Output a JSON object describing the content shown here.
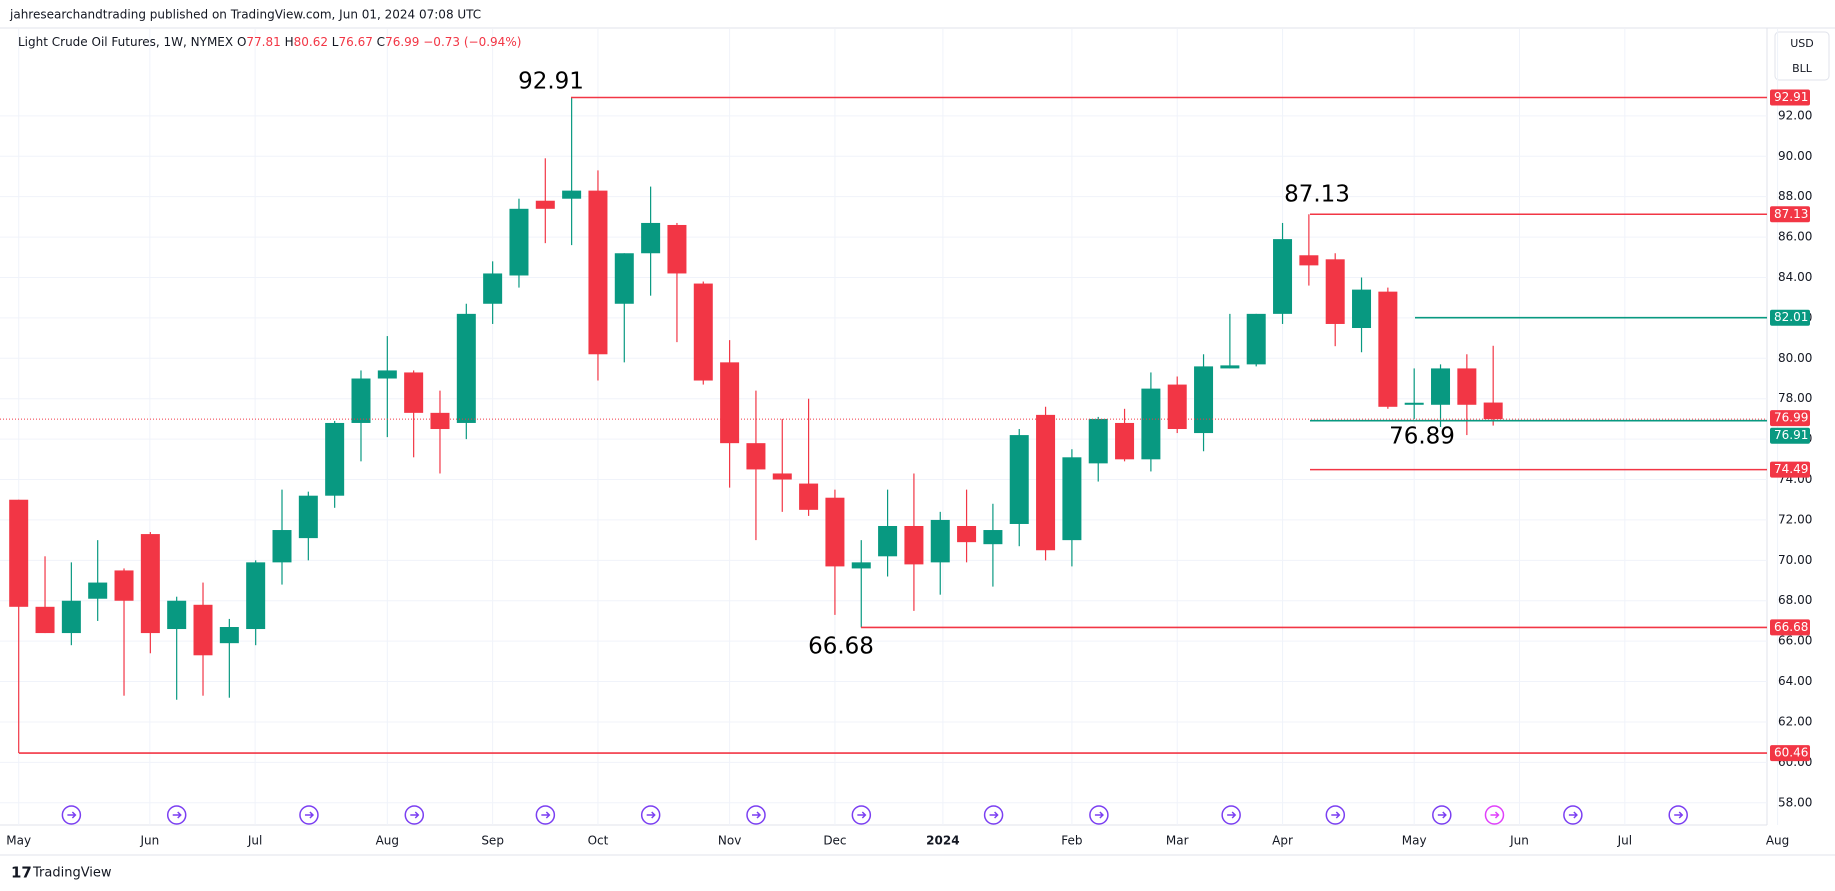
{
  "header": "jahresearchandtrading published on TradingView.com, Jun 01, 2024 07:08 UTC",
  "footer": "TradingView",
  "currency": "USD",
  "unit": "BLL",
  "chart_data": {
    "type": "candlestick",
    "legend": {
      "title": "Light Crude Oil Futures, 1W, NYMEX",
      "open_label": "O",
      "open": 77.81,
      "high_label": "H",
      "high": 80.62,
      "low_label": "L",
      "low": 76.67,
      "close_label": "C",
      "close": 76.99,
      "change": {
        "value": -0.73,
        "label": "−0.73"
      },
      "change_pct": {
        "value": -0.94,
        "label": "(−0.94%)"
      }
    },
    "up_color": "#089981",
    "down_color": "#f23645",
    "candles": [
      {
        "open": 73.0,
        "high": 73.0,
        "low": 60.46,
        "close": 67.7
      },
      {
        "open": 67.7,
        "high": 70.2,
        "low": 66.4,
        "close": 66.4
      },
      {
        "open": 66.4,
        "high": 69.9,
        "low": 65.8,
        "close": 68.0
      },
      {
        "open": 68.1,
        "high": 71.0,
        "low": 67.0,
        "close": 68.9
      },
      {
        "open": 69.5,
        "high": 69.6,
        "low": 63.3,
        "close": 68.0
      },
      {
        "open": 71.3,
        "high": 71.4,
        "low": 65.4,
        "close": 66.4
      },
      {
        "open": 66.6,
        "high": 68.2,
        "low": 63.1,
        "close": 68.0
      },
      {
        "open": 67.8,
        "high": 68.9,
        "low": 63.3,
        "close": 65.3
      },
      {
        "open": 65.9,
        "high": 67.1,
        "low": 63.2,
        "close": 66.7
      },
      {
        "open": 66.6,
        "high": 70.0,
        "low": 65.8,
        "close": 69.9
      },
      {
        "open": 69.9,
        "high": 73.5,
        "low": 68.8,
        "close": 71.5
      },
      {
        "open": 71.1,
        "high": 73.4,
        "low": 70.0,
        "close": 73.2
      },
      {
        "open": 73.2,
        "high": 76.9,
        "low": 72.6,
        "close": 76.8
      },
      {
        "open": 76.8,
        "high": 79.4,
        "low": 74.9,
        "close": 79.0
      },
      {
        "open": 79.0,
        "high": 81.1,
        "low": 76.1,
        "close": 79.4
      },
      {
        "open": 79.3,
        "high": 79.4,
        "low": 75.1,
        "close": 77.3
      },
      {
        "open": 77.3,
        "high": 78.4,
        "low": 74.3,
        "close": 76.5
      },
      {
        "open": 76.8,
        "high": 82.7,
        "low": 76.0,
        "close": 82.2
      },
      {
        "open": 82.7,
        "high": 84.8,
        "low": 81.7,
        "close": 84.2
      },
      {
        "open": 84.1,
        "high": 87.9,
        "low": 83.5,
        "close": 87.4
      },
      {
        "open": 87.8,
        "high": 89.9,
        "low": 85.7,
        "close": 87.4
      },
      {
        "open": 87.9,
        "high": 92.91,
        "low": 85.6,
        "close": 88.3
      },
      {
        "open": 88.3,
        "high": 89.3,
        "low": 78.9,
        "close": 80.2
      },
      {
        "open": 82.7,
        "high": 85.2,
        "low": 79.8,
        "close": 85.2
      },
      {
        "open": 85.2,
        "high": 88.5,
        "low": 83.1,
        "close": 86.7
      },
      {
        "open": 86.6,
        "high": 86.7,
        "low": 80.8,
        "close": 84.2
      },
      {
        "open": 83.7,
        "high": 83.8,
        "low": 78.7,
        "close": 78.9
      },
      {
        "open": 79.8,
        "high": 80.9,
        "low": 73.6,
        "close": 75.8
      },
      {
        "open": 75.8,
        "high": 78.4,
        "low": 71.0,
        "close": 74.5
      },
      {
        "open": 74.3,
        "high": 77.0,
        "low": 72.4,
        "close": 74.0
      },
      {
        "open": 73.8,
        "high": 78.0,
        "low": 72.2,
        "close": 72.5
      },
      {
        "open": 73.1,
        "high": 73.5,
        "low": 67.3,
        "close": 69.7
      },
      {
        "open": 69.6,
        "high": 71.0,
        "low": 66.68,
        "close": 69.9
      },
      {
        "open": 70.2,
        "high": 73.5,
        "low": 69.2,
        "close": 71.7
      },
      {
        "open": 71.7,
        "high": 74.3,
        "low": 67.5,
        "close": 69.8
      },
      {
        "open": 69.9,
        "high": 72.4,
        "low": 68.3,
        "close": 72.0
      },
      {
        "open": 71.7,
        "high": 73.5,
        "low": 69.9,
        "close": 70.9
      },
      {
        "open": 70.8,
        "high": 72.8,
        "low": 68.7,
        "close": 71.5
      },
      {
        "open": 71.8,
        "high": 76.5,
        "low": 70.7,
        "close": 76.2
      },
      {
        "open": 77.2,
        "high": 77.6,
        "low": 70.0,
        "close": 70.5
      },
      {
        "open": 71.0,
        "high": 75.5,
        "low": 69.7,
        "close": 75.1
      },
      {
        "open": 74.8,
        "high": 77.1,
        "low": 73.9,
        "close": 77.0
      },
      {
        "open": 76.8,
        "high": 77.5,
        "low": 74.9,
        "close": 75.0
      },
      {
        "open": 75.0,
        "high": 79.3,
        "low": 74.4,
        "close": 78.5
      },
      {
        "open": 78.7,
        "high": 79.1,
        "low": 76.3,
        "close": 76.5
      },
      {
        "open": 76.3,
        "high": 80.2,
        "low": 75.4,
        "close": 79.6
      },
      {
        "open": 79.5,
        "high": 82.2,
        "low": 79.5,
        "close": 79.65
      },
      {
        "open": 79.7,
        "high": 82.2,
        "low": 79.6,
        "close": 82.2
      },
      {
        "open": 82.2,
        "high": 86.7,
        "low": 81.7,
        "close": 85.9
      },
      {
        "open": 85.1,
        "high": 87.13,
        "low": 83.6,
        "close": 84.6
      },
      {
        "open": 84.9,
        "high": 85.2,
        "low": 80.6,
        "close": 81.7
      },
      {
        "open": 81.5,
        "high": 84.0,
        "low": 80.3,
        "close": 83.4
      },
      {
        "open": 83.3,
        "high": 83.5,
        "low": 77.5,
        "close": 77.6
      },
      {
        "open": 77.7,
        "high": 79.5,
        "low": 77.0,
        "close": 77.8
      },
      {
        "open": 77.7,
        "high": 79.7,
        "low": 76.6,
        "close": 79.5
      },
      {
        "open": 79.5,
        "high": 80.2,
        "low": 76.2,
        "close": 77.7
      },
      {
        "open": 77.81,
        "high": 80.62,
        "low": 76.67,
        "close": 76.99
      }
    ],
    "levels": [
      {
        "value": 92.91,
        "color": "#f23645"
      },
      {
        "value": 87.13,
        "color": "#f23645"
      },
      {
        "value": 82.01,
        "color": "#089981"
      },
      {
        "value": 76.91,
        "color": "#089981"
      },
      {
        "value": 74.49,
        "color": "#f23645"
      },
      {
        "value": 66.68,
        "color": "#f23645"
      },
      {
        "value": 60.46,
        "color": "#f23645"
      }
    ],
    "annotations": [
      92.91,
      87.13,
      66.68,
      76.89
    ],
    "ylim": [
      56.9,
      96.3
    ],
    "yticks": [
      {
        "value": 58,
        "label": "58.00"
      },
      {
        "value": 60,
        "label": "60.00"
      },
      {
        "value": 62,
        "label": "62.00"
      },
      {
        "value": 64,
        "label": "64.00"
      },
      {
        "value": 66,
        "label": "66.00"
      },
      {
        "value": 68,
        "label": "68.00"
      },
      {
        "value": 70,
        "label": "70.00"
      },
      {
        "value": 72,
        "label": "72.00"
      },
      {
        "value": 74,
        "label": "74.00"
      },
      {
        "value": 76,
        "label": "76.00"
      },
      {
        "value": 78,
        "label": "78.00"
      },
      {
        "value": 80,
        "label": "80.00"
      },
      {
        "value": 82,
        "label": "82.00"
      },
      {
        "value": 84,
        "label": "84.00"
      },
      {
        "value": 86,
        "label": "86.00"
      },
      {
        "value": 88,
        "label": "88.00"
      },
      {
        "value": 90,
        "label": "90.00"
      },
      {
        "value": 92,
        "label": "92.00"
      }
    ],
    "xticks": [
      {
        "value": 0,
        "label": "May"
      },
      {
        "value": 4.98,
        "label": "Jun"
      },
      {
        "value": 8.98,
        "label": "Jul"
      },
      {
        "value": 14,
        "label": "Aug"
      },
      {
        "value": 18,
        "label": "Sep"
      },
      {
        "value": 22,
        "label": "Oct"
      },
      {
        "value": 27,
        "label": "Nov"
      },
      {
        "value": 31,
        "label": "Dec"
      },
      {
        "value": 35.1,
        "label": "2024"
      },
      {
        "value": 40,
        "label": "Feb"
      },
      {
        "value": 44,
        "label": "Mar"
      },
      {
        "value": 48,
        "label": "Apr"
      },
      {
        "value": 53,
        "label": "May"
      },
      {
        "value": 57,
        "label": "Jun"
      },
      {
        "value": 61,
        "label": "Jul"
      },
      {
        "value": 66.8,
        "label": "Aug"
      }
    ],
    "grid": true
  }
}
